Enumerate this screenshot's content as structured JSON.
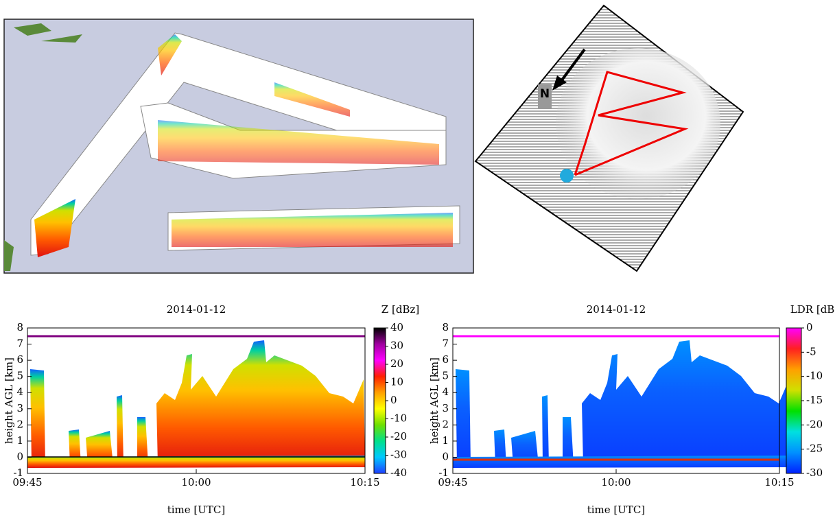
{
  "map": {
    "north_label": "N"
  },
  "chart_data": [
    {
      "type": "heatmap",
      "title": "2014-01-12",
      "x_label": "time [UTC]",
      "y_label": "height AGL [km]",
      "colorbar_label": "Z [dBz]",
      "xticks": [
        "09:45",
        "10:00",
        "10:15"
      ],
      "ylim": [
        -1,
        8
      ],
      "yticks": [
        -1,
        0,
        1,
        2,
        3,
        4,
        5,
        6,
        7,
        8
      ],
      "clim": [
        -40,
        40
      ],
      "cticks": [
        -40,
        -30,
        -20,
        -10,
        0,
        10,
        20,
        30,
        40
      ],
      "colormap": [
        "#1f3fff",
        "#00c8ff",
        "#00e08a",
        "#6ee000",
        "#ffff00",
        "#ffa000",
        "#ff2000",
        "#ff00ff",
        "#a000a0",
        "#000000"
      ]
    },
    {
      "type": "heatmap",
      "title": "2014-01-12",
      "x_label": "time [UTC]",
      "y_label": "height AGL [km]",
      "colorbar_label": "LDR [dB]",
      "xticks": [
        "09:45",
        "10:00",
        "10:15"
      ],
      "ylim": [
        -1,
        8
      ],
      "yticks": [
        -1,
        0,
        1,
        2,
        3,
        4,
        5,
        6,
        7,
        8
      ],
      "clim": [
        -30,
        0
      ],
      "cticks": [
        -30,
        -25,
        -20,
        -15,
        -10,
        -5,
        0
      ],
      "colormap": [
        "#0020ff",
        "#0090ff",
        "#00e0e0",
        "#00e000",
        "#d0e000",
        "#ffa000",
        "#ff2020",
        "#ff00ff"
      ]
    }
  ]
}
